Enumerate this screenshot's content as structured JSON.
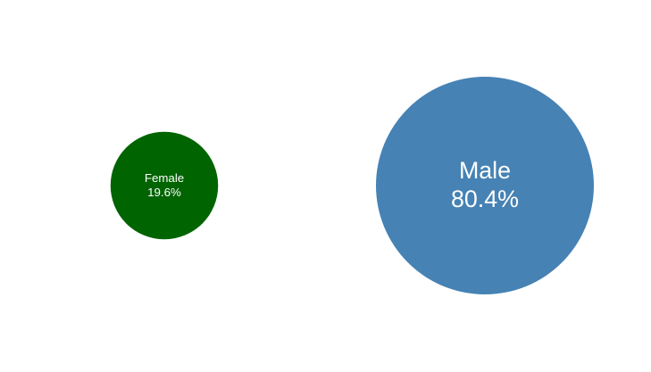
{
  "chart_data": {
    "type": "bubble",
    "title": "",
    "points": [
      {
        "label": "Female",
        "percent_label": "19.6%",
        "value": 19.6,
        "color": "#006400"
      },
      {
        "label": "Male",
        "percent_label": "80.4%",
        "value": 80.4,
        "color": "#4682B4"
      }
    ],
    "legend": false,
    "grid": false
  }
}
